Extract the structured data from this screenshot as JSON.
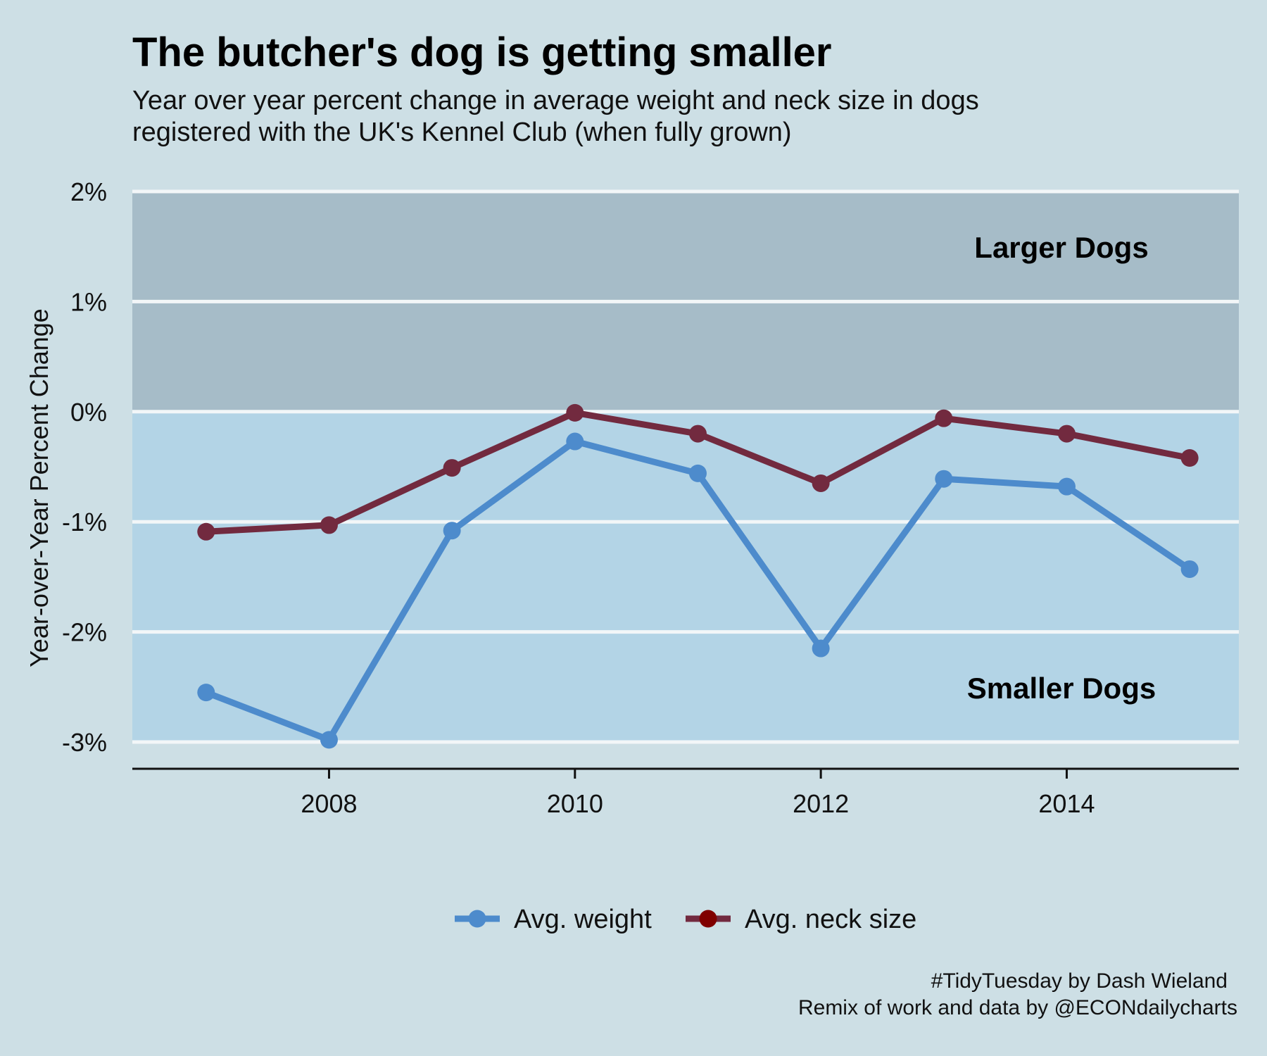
{
  "chart_data": {
    "type": "line",
    "title": "The butcher's dog is getting smaller",
    "subtitle_lines": [
      "Year over year percent change in average weight and neck size in dogs",
      "registered with the UK's Kennel Club (when fully grown)"
    ],
    "xlabel": "",
    "ylabel": "Year-over-Year Percent Change",
    "x": [
      2007,
      2008,
      2009,
      2010,
      2011,
      2012,
      2013,
      2014,
      2015
    ],
    "xlim": [
      2006.4,
      2015.4
    ],
    "x_ticks": [
      2008,
      2010,
      2012,
      2014
    ],
    "x_tick_labels": [
      "2008",
      "2010",
      "2012",
      "2014"
    ],
    "ylim": [
      -3,
      2
    ],
    "y_ticks": [
      2,
      1,
      0,
      -1,
      -2,
      -3
    ],
    "y_tick_labels": [
      "2%",
      "1%",
      "0%",
      "-1%",
      "-2%",
      "-3%"
    ],
    "regions": [
      {
        "label": "Larger Dogs",
        "from": 0,
        "to": 2,
        "color": "#a6bcc8"
      },
      {
        "label": "Smaller Dogs",
        "from": -3,
        "to": 0,
        "color": "#b3d4e6"
      }
    ],
    "series": [
      {
        "name": "Avg. weight",
        "color": "#4d8bcc",
        "legend_dot_color": "#4d8bcc",
        "values": [
          -2.55,
          -2.98,
          -1.08,
          -0.27,
          -0.56,
          -2.15,
          -0.61,
          -0.68,
          -1.43
        ]
      },
      {
        "name": "Avg. neck size",
        "color": "#722a3f",
        "legend_dot_color": "#800000",
        "values": [
          -1.09,
          -1.03,
          -0.51,
          -0.01,
          -0.2,
          -0.65,
          -0.06,
          -0.2,
          -0.42
        ]
      }
    ],
    "grid": true,
    "legend_position": "bottom",
    "caption_lines": [
      "#TidyTuesday by Dash Wieland",
      "Remix of work and data by @ECONdailycharts"
    ]
  }
}
